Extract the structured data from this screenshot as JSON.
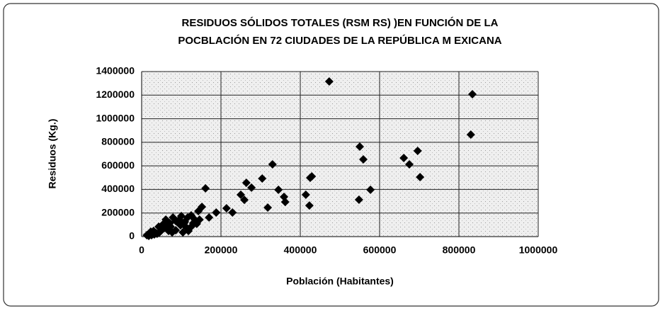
{
  "chart_data": {
    "type": "scatter",
    "title": [
      "RESIDUOS SÓLIDOS TOTALES  (RSM RS) )EN FUNCIÓN DE LA",
      "POCBLACIÓN EN 72 CIUDADES DE LA REPÚBLICA M EXICANA"
    ],
    "x_label": "Población (Habitantes)",
    "y_label": "Residuos (Kg.)",
    "series": [
      {
        "color": "#000000",
        "x": [
          473000,
          834000,
          830000,
          550000,
          559000,
          577000,
          548000,
          661000,
          675000,
          696000,
          702000,
          429000,
          425000,
          414000,
          423000,
          330000,
          345000,
          359000,
          362000,
          304000,
          318000,
          264000,
          277000,
          250000,
          259000,
          214000,
          229000,
          188000,
          170000,
          161000,
          152000,
          143000,
          134000,
          116000,
          107000,
          98000,
          89000,
          86000,
          71000,
          64000,
          57000,
          50000,
          45000,
          39000,
          32000,
          25000,
          18000,
          77000,
          100000,
          111000,
          125000,
          130000,
          118000,
          68000,
          55000,
          48000,
          61000,
          23000,
          13000,
          146000,
          95000,
          73000,
          104000,
          86000,
          43000,
          30000,
          125000,
          79000,
          139000,
          52000,
          36000,
          109000
        ],
        "values": [
          1316000,
          1208000,
          865000,
          763000,
          655000,
          397000,
          313000,
          667000,
          613000,
          727000,
          505000,
          511000,
          499000,
          355000,
          264000,
          613000,
          397000,
          337000,
          294000,
          493000,
          246000,
          457000,
          415000,
          355000,
          312000,
          240000,
          204000,
          204000,
          162000,
          409000,
          252000,
          216000,
          144000,
          162000,
          114000,
          96000,
          126000,
          54000,
          114000,
          96000,
          72000,
          54000,
          36000,
          24000,
          18000,
          12000,
          6000,
          36000,
          174000,
          84000,
          84000,
          114000,
          48000,
          48000,
          108000,
          84000,
          144000,
          42000,
          12000,
          144000,
          144000,
          84000,
          36000,
          132000,
          84000,
          48000,
          180000,
          162000,
          108000,
          66000,
          30000,
          126000
        ]
      }
    ],
    "xlim": [
      0,
      1000000
    ],
    "xticks": [
      0,
      200000,
      400000,
      600000,
      800000,
      1000000
    ],
    "ylim": [
      0,
      1400000
    ],
    "yticks": [
      0,
      200000,
      400000,
      600000,
      800000,
      1000000,
      1200000,
      1400000
    ],
    "grid": true
  }
}
